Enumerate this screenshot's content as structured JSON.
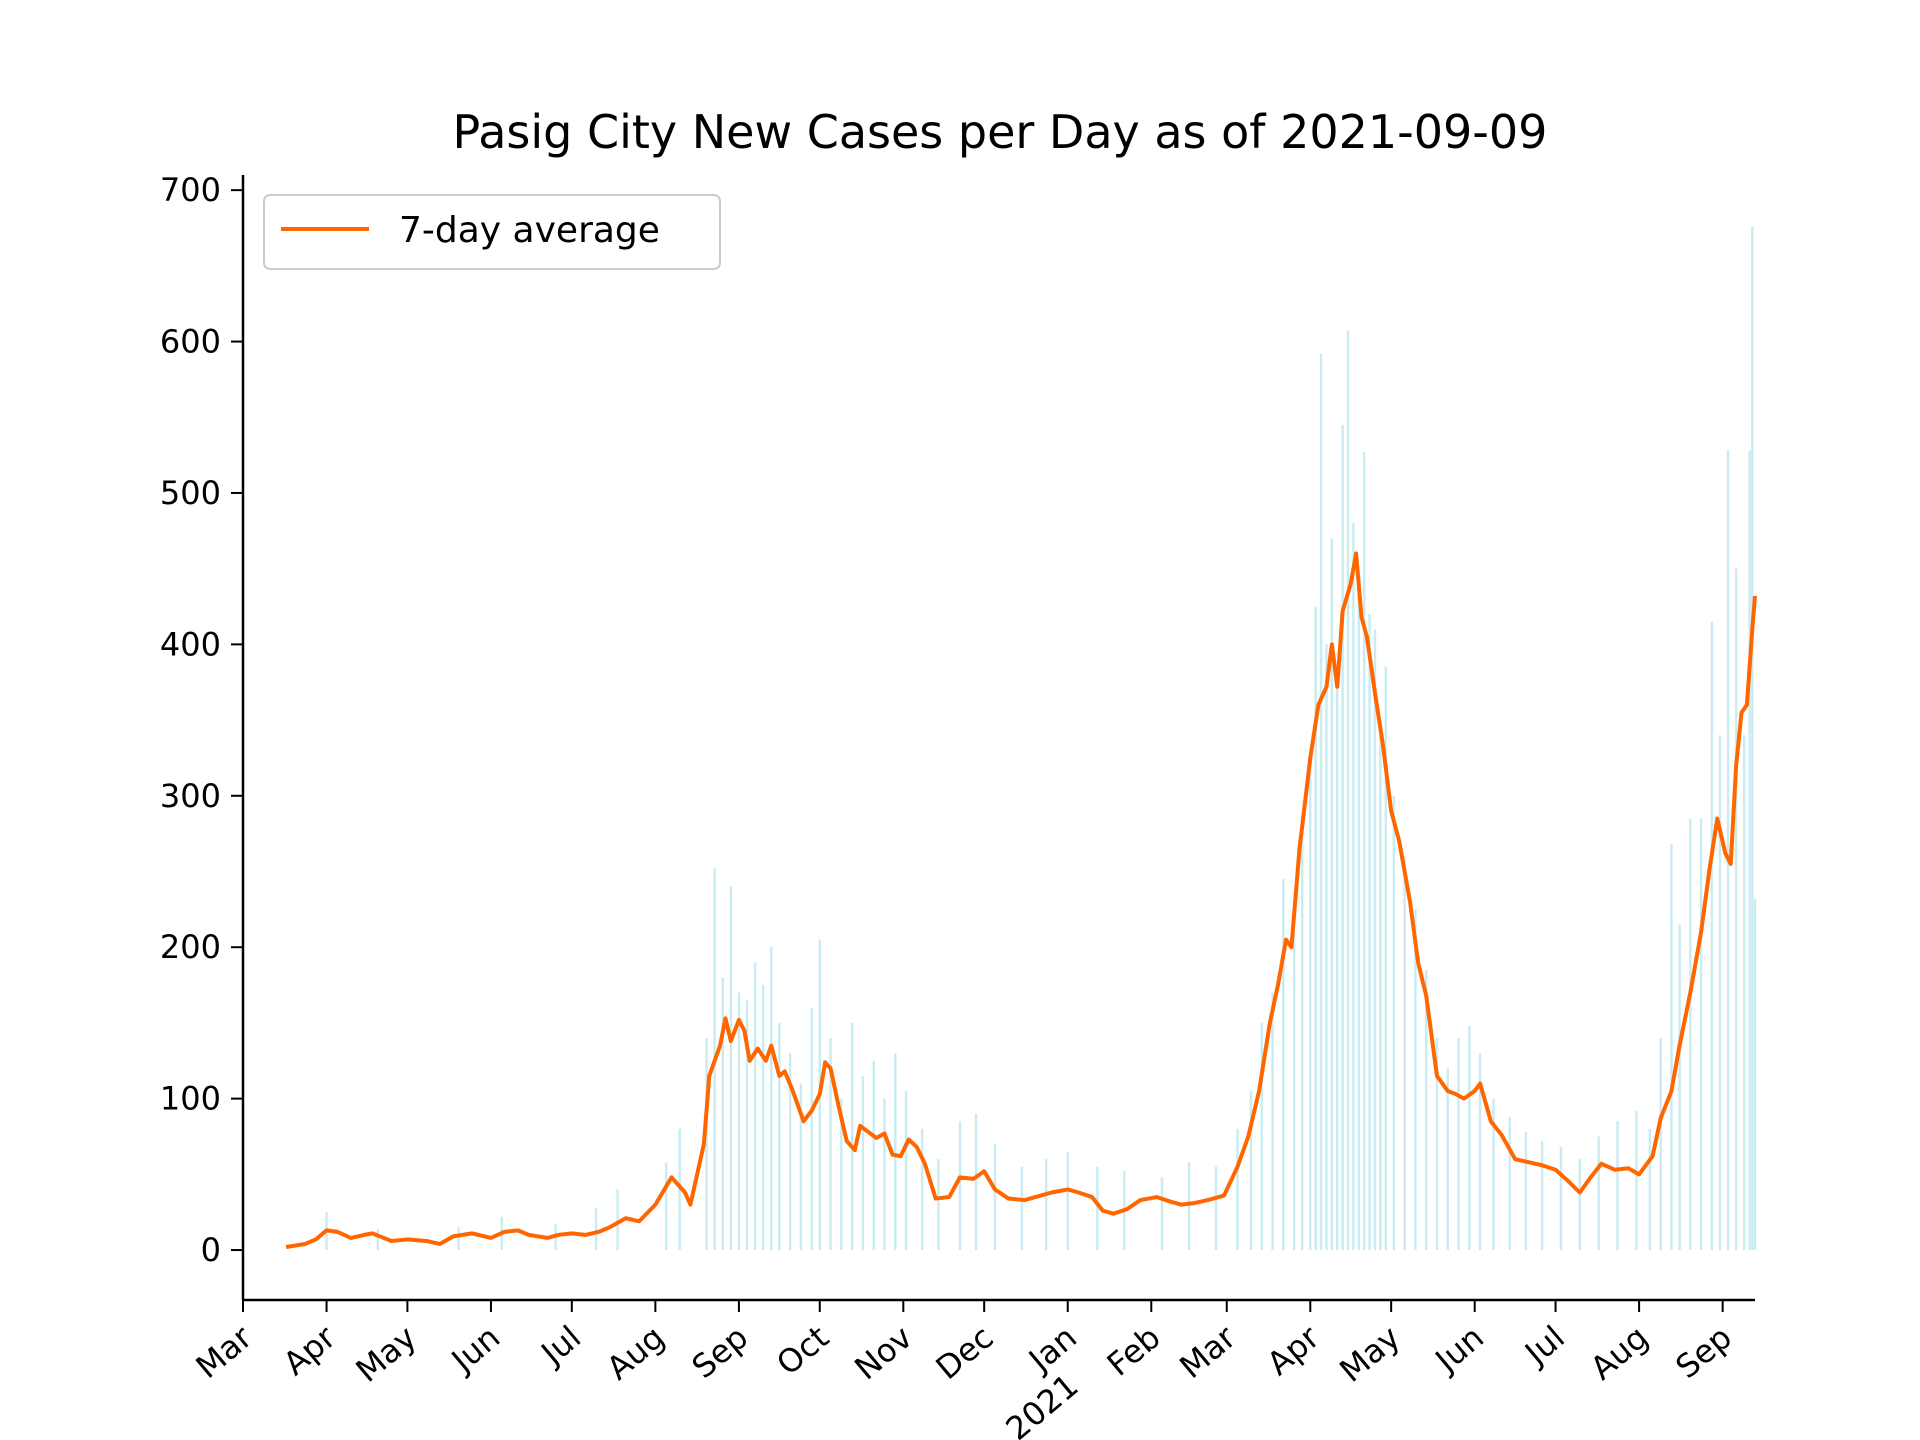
{
  "chart_data": {
    "type": "bar+line",
    "title": "Pasig City New Cases per Day as of 2021-09-09",
    "xlabel": "",
    "ylabel": "",
    "ylim": [
      -33,
      710
    ],
    "yticks": [
      0,
      100,
      200,
      300,
      400,
      500,
      600,
      700
    ],
    "xlim": [
      "2020-03-01",
      "2021-09-13"
    ],
    "xticks": [
      {
        "date": "2020-03-01",
        "label": "Mar"
      },
      {
        "date": "2020-04-01",
        "label": "Apr"
      },
      {
        "date": "2020-05-01",
        "label": "May"
      },
      {
        "date": "2020-06-01",
        "label": "Jun"
      },
      {
        "date": "2020-07-01",
        "label": "Jul"
      },
      {
        "date": "2020-08-01",
        "label": "Aug"
      },
      {
        "date": "2020-09-01",
        "label": "Sep"
      },
      {
        "date": "2020-10-01",
        "label": "Oct"
      },
      {
        "date": "2020-11-01",
        "label": "Nov"
      },
      {
        "date": "2020-12-01",
        "label": "Dec"
      },
      {
        "date": "2021-01-01",
        "label": "Jan\n2021"
      },
      {
        "date": "2021-02-01",
        "label": "Feb"
      },
      {
        "date": "2021-03-01",
        "label": "Mar"
      },
      {
        "date": "2021-04-01",
        "label": "Apr"
      },
      {
        "date": "2021-05-01",
        "label": "May"
      },
      {
        "date": "2021-06-01",
        "label": "Jun"
      },
      {
        "date": "2021-07-01",
        "label": "Jul"
      },
      {
        "date": "2021-08-01",
        "label": "Aug"
      },
      {
        "date": "2021-09-01",
        "label": "Sep"
      }
    ],
    "legend": {
      "placement": "top-left",
      "entries": [
        {
          "label": "7-day average",
          "color": "#ff6600"
        }
      ]
    },
    "grid": false,
    "colors": {
      "bars": "#c8ecf2",
      "line": "#ff6600",
      "axis": "#000000"
    },
    "series": [
      {
        "name": "7-day average",
        "kind": "line",
        "points": [
          [
            "2020-03-17",
            2
          ],
          [
            "2020-03-24",
            4
          ],
          [
            "2020-03-28",
            7
          ],
          [
            "2020-04-01",
            13
          ],
          [
            "2020-04-05",
            12
          ],
          [
            "2020-04-10",
            8
          ],
          [
            "2020-04-15",
            10
          ],
          [
            "2020-04-18",
            11
          ],
          [
            "2020-04-25",
            6
          ],
          [
            "2020-05-01",
            7
          ],
          [
            "2020-05-08",
            6
          ],
          [
            "2020-05-13",
            4
          ],
          [
            "2020-05-18",
            9
          ],
          [
            "2020-05-25",
            11
          ],
          [
            "2020-06-01",
            8
          ],
          [
            "2020-06-06",
            12
          ],
          [
            "2020-06-11",
            13
          ],
          [
            "2020-06-15",
            10
          ],
          [
            "2020-06-22",
            8
          ],
          [
            "2020-06-26",
            10
          ],
          [
            "2020-07-01",
            11
          ],
          [
            "2020-07-06",
            10
          ],
          [
            "2020-07-11",
            12
          ],
          [
            "2020-07-15",
            15
          ],
          [
            "2020-07-21",
            21
          ],
          [
            "2020-07-26",
            19
          ],
          [
            "2020-08-01",
            30
          ],
          [
            "2020-08-07",
            48
          ],
          [
            "2020-08-12",
            38
          ],
          [
            "2020-08-14",
            30
          ],
          [
            "2020-08-19",
            70
          ],
          [
            "2020-08-21",
            115
          ],
          [
            "2020-08-25",
            135
          ],
          [
            "2020-08-27",
            153
          ],
          [
            "2020-08-29",
            138
          ],
          [
            "2020-09-01",
            152
          ],
          [
            "2020-09-03",
            145
          ],
          [
            "2020-09-05",
            125
          ],
          [
            "2020-09-08",
            133
          ],
          [
            "2020-09-11",
            125
          ],
          [
            "2020-09-13",
            135
          ],
          [
            "2020-09-16",
            115
          ],
          [
            "2020-09-18",
            118
          ],
          [
            "2020-09-21",
            105
          ],
          [
            "2020-09-25",
            85
          ],
          [
            "2020-09-28",
            92
          ],
          [
            "2020-10-01",
            103
          ],
          [
            "2020-10-03",
            124
          ],
          [
            "2020-10-05",
            120
          ],
          [
            "2020-10-08",
            95
          ],
          [
            "2020-10-11",
            72
          ],
          [
            "2020-10-14",
            66
          ],
          [
            "2020-10-16",
            82
          ],
          [
            "2020-10-19",
            78
          ],
          [
            "2020-10-22",
            74
          ],
          [
            "2020-10-25",
            77
          ],
          [
            "2020-10-28",
            63
          ],
          [
            "2020-10-31",
            62
          ],
          [
            "2020-11-03",
            73
          ],
          [
            "2020-11-06",
            68
          ],
          [
            "2020-11-09",
            57
          ],
          [
            "2020-11-13",
            34
          ],
          [
            "2020-11-18",
            35
          ],
          [
            "2020-11-22",
            48
          ],
          [
            "2020-11-27",
            47
          ],
          [
            "2020-12-01",
            52
          ],
          [
            "2020-12-05",
            40
          ],
          [
            "2020-12-10",
            34
          ],
          [
            "2020-12-16",
            33
          ],
          [
            "2020-12-20",
            35
          ],
          [
            "2020-12-26",
            38
          ],
          [
            "2021-01-01",
            40
          ],
          [
            "2021-01-05",
            38
          ],
          [
            "2021-01-10",
            35
          ],
          [
            "2021-01-14",
            26
          ],
          [
            "2021-01-18",
            24
          ],
          [
            "2021-01-23",
            27
          ],
          [
            "2021-01-28",
            33
          ],
          [
            "2021-02-03",
            35
          ],
          [
            "2021-02-08",
            32
          ],
          [
            "2021-02-12",
            30
          ],
          [
            "2021-02-17",
            31
          ],
          [
            "2021-02-22",
            33
          ],
          [
            "2021-02-28",
            36
          ],
          [
            "2021-03-05",
            55
          ],
          [
            "2021-03-09",
            75
          ],
          [
            "2021-03-13",
            105
          ],
          [
            "2021-03-17",
            150
          ],
          [
            "2021-03-20",
            175
          ],
          [
            "2021-03-23",
            205
          ],
          [
            "2021-03-25",
            200
          ],
          [
            "2021-03-28",
            265
          ],
          [
            "2021-04-01",
            325
          ],
          [
            "2021-04-04",
            360
          ],
          [
            "2021-04-07",
            372
          ],
          [
            "2021-04-09",
            400
          ],
          [
            "2021-04-11",
            372
          ],
          [
            "2021-04-13",
            422
          ],
          [
            "2021-04-16",
            440
          ],
          [
            "2021-04-18",
            460
          ],
          [
            "2021-04-20",
            418
          ],
          [
            "2021-04-22",
            405
          ],
          [
            "2021-04-25",
            368
          ],
          [
            "2021-04-28",
            333
          ],
          [
            "2021-05-01",
            290
          ],
          [
            "2021-05-04",
            270
          ],
          [
            "2021-05-08",
            230
          ],
          [
            "2021-05-11",
            190
          ],
          [
            "2021-05-14",
            168
          ],
          [
            "2021-05-18",
            115
          ],
          [
            "2021-05-22",
            105
          ],
          [
            "2021-05-25",
            103
          ],
          [
            "2021-05-28",
            100
          ],
          [
            "2021-06-01",
            105
          ],
          [
            "2021-06-03",
            110
          ],
          [
            "2021-06-07",
            85
          ],
          [
            "2021-06-11",
            76
          ],
          [
            "2021-06-16",
            60
          ],
          [
            "2021-06-21",
            58
          ],
          [
            "2021-06-26",
            56
          ],
          [
            "2021-07-01",
            53
          ],
          [
            "2021-07-06",
            45
          ],
          [
            "2021-07-10",
            38
          ],
          [
            "2021-07-14",
            48
          ],
          [
            "2021-07-18",
            57
          ],
          [
            "2021-07-23",
            53
          ],
          [
            "2021-07-28",
            54
          ],
          [
            "2021-08-01",
            50
          ],
          [
            "2021-08-06",
            62
          ],
          [
            "2021-08-09",
            87
          ],
          [
            "2021-08-13",
            105
          ],
          [
            "2021-08-16",
            135
          ],
          [
            "2021-08-20",
            170
          ],
          [
            "2021-08-24",
            210
          ],
          [
            "2021-08-27",
            250
          ],
          [
            "2021-08-30",
            285
          ],
          [
            "2021-09-02",
            262
          ],
          [
            "2021-09-04",
            255
          ],
          [
            "2021-09-06",
            320
          ],
          [
            "2021-09-08",
            355
          ],
          [
            "2021-09-10",
            360
          ],
          [
            "2021-09-12",
            410
          ],
          [
            "2021-09-13",
            432
          ]
        ]
      },
      {
        "name": "",
        "kind": "bar",
        "points": [
          [
            "2020-04-01",
            25
          ],
          [
            "2020-04-20",
            14
          ],
          [
            "2020-05-20",
            15
          ],
          [
            "2020-06-05",
            22
          ],
          [
            "2020-06-25",
            17
          ],
          [
            "2020-07-10",
            28
          ],
          [
            "2020-07-18",
            40
          ],
          [
            "2020-08-05",
            58
          ],
          [
            "2020-08-10",
            80
          ],
          [
            "2020-08-20",
            140
          ],
          [
            "2020-08-23",
            252
          ],
          [
            "2020-08-26",
            180
          ],
          [
            "2020-08-29",
            240
          ],
          [
            "2020-09-01",
            170
          ],
          [
            "2020-09-04",
            165
          ],
          [
            "2020-09-07",
            190
          ],
          [
            "2020-09-10",
            175
          ],
          [
            "2020-09-13",
            200
          ],
          [
            "2020-09-16",
            150
          ],
          [
            "2020-09-20",
            130
          ],
          [
            "2020-09-24",
            110
          ],
          [
            "2020-09-28",
            160
          ],
          [
            "2020-10-01",
            205
          ],
          [
            "2020-10-05",
            140
          ],
          [
            "2020-10-09",
            100
          ],
          [
            "2020-10-13",
            150
          ],
          [
            "2020-10-17",
            115
          ],
          [
            "2020-10-21",
            125
          ],
          [
            "2020-10-25",
            100
          ],
          [
            "2020-10-29",
            130
          ],
          [
            "2020-11-02",
            105
          ],
          [
            "2020-11-08",
            80
          ],
          [
            "2020-11-14",
            60
          ],
          [
            "2020-11-22",
            85
          ],
          [
            "2020-11-28",
            90
          ],
          [
            "2020-12-05",
            70
          ],
          [
            "2020-12-15",
            55
          ],
          [
            "2020-12-24",
            60
          ],
          [
            "2021-01-01",
            65
          ],
          [
            "2021-01-12",
            55
          ],
          [
            "2021-01-22",
            52
          ],
          [
            "2021-02-05",
            48
          ],
          [
            "2021-02-15",
            58
          ],
          [
            "2021-02-25",
            55
          ],
          [
            "2021-03-05",
            80
          ],
          [
            "2021-03-10",
            105
          ],
          [
            "2021-03-14",
            150
          ],
          [
            "2021-03-18",
            170
          ],
          [
            "2021-03-22",
            245
          ],
          [
            "2021-03-26",
            210
          ],
          [
            "2021-03-29",
            285
          ],
          [
            "2021-04-01",
            330
          ],
          [
            "2021-04-03",
            425
          ],
          [
            "2021-04-05",
            592
          ],
          [
            "2021-04-07",
            400
          ],
          [
            "2021-04-09",
            470
          ],
          [
            "2021-04-11",
            380
          ],
          [
            "2021-04-13",
            545
          ],
          [
            "2021-04-15",
            607
          ],
          [
            "2021-04-17",
            480
          ],
          [
            "2021-04-19",
            440
          ],
          [
            "2021-04-21",
            527
          ],
          [
            "2021-04-23",
            420
          ],
          [
            "2021-04-25",
            410
          ],
          [
            "2021-04-27",
            350
          ],
          [
            "2021-04-29",
            385
          ],
          [
            "2021-05-02",
            300
          ],
          [
            "2021-05-06",
            260
          ],
          [
            "2021-05-10",
            225
          ],
          [
            "2021-05-14",
            185
          ],
          [
            "2021-05-18",
            140
          ],
          [
            "2021-05-22",
            120
          ],
          [
            "2021-05-26",
            140
          ],
          [
            "2021-05-30",
            148
          ],
          [
            "2021-06-03",
            130
          ],
          [
            "2021-06-08",
            100
          ],
          [
            "2021-06-14",
            88
          ],
          [
            "2021-06-20",
            78
          ],
          [
            "2021-06-26",
            72
          ],
          [
            "2021-07-03",
            68
          ],
          [
            "2021-07-10",
            60
          ],
          [
            "2021-07-17",
            75
          ],
          [
            "2021-07-24",
            85
          ],
          [
            "2021-07-31",
            92
          ],
          [
            "2021-08-05",
            80
          ],
          [
            "2021-08-09",
            140
          ],
          [
            "2021-08-13",
            268
          ],
          [
            "2021-08-16",
            215
          ],
          [
            "2021-08-20",
            285
          ],
          [
            "2021-08-24",
            285
          ],
          [
            "2021-08-28",
            415
          ],
          [
            "2021-08-31",
            340
          ],
          [
            "2021-09-03",
            528
          ],
          [
            "2021-09-06",
            450
          ],
          [
            "2021-09-09",
            340
          ],
          [
            "2021-09-11",
            528
          ],
          [
            "2021-09-12",
            676
          ],
          [
            "2021-09-13",
            232
          ]
        ]
      }
    ]
  }
}
